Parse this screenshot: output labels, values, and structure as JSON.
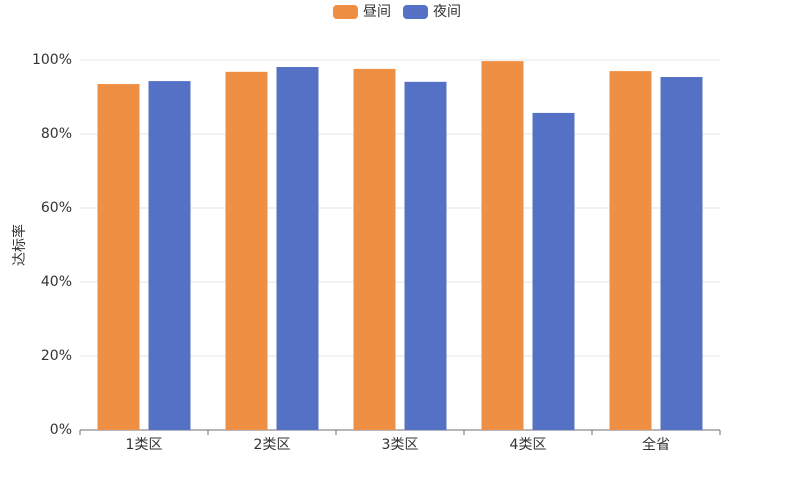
{
  "chart_data": {
    "type": "bar",
    "y_label": "达标率",
    "categories": [
      "1类区",
      "2类区",
      "3类区",
      "4类区",
      "全省"
    ],
    "series": [
      {
        "name": "昼间",
        "color": "#ef8f44",
        "values": [
          93.5,
          96.8,
          97.6,
          99.7,
          97.0
        ]
      },
      {
        "name": "夜间",
        "color": "#5571c6",
        "values": [
          94.3,
          98.1,
          94.1,
          85.7,
          95.4
        ]
      }
    ],
    "ylim": [
      0,
      100
    ],
    "yticks": [
      {
        "value": 0,
        "label": "0%"
      },
      {
        "value": 20,
        "label": "20%"
      },
      {
        "value": 40,
        "label": "40%"
      },
      {
        "value": 60,
        "label": "60%"
      },
      {
        "value": 80,
        "label": "80%"
      },
      {
        "value": 100,
        "label": "100%"
      }
    ],
    "grid": true,
    "legend": "top"
  }
}
